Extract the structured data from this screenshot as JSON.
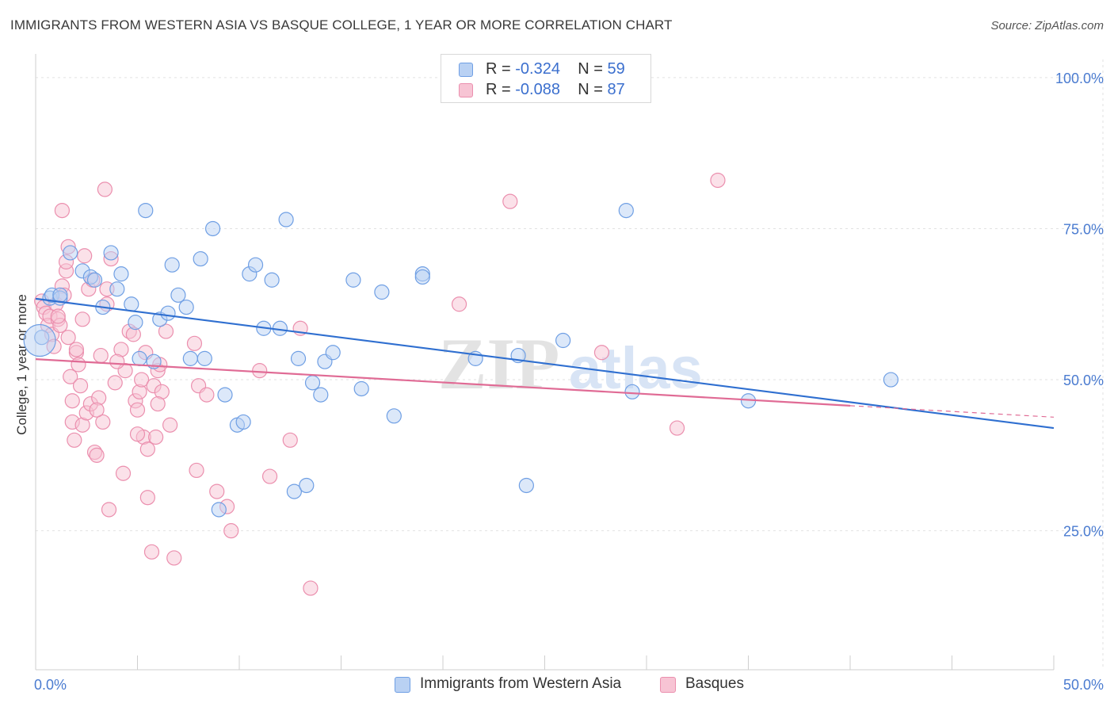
{
  "header": {
    "title": "IMMIGRANTS FROM WESTERN ASIA VS BASQUE COLLEGE, 1 YEAR OR MORE CORRELATION CHART",
    "source": "Source: ZipAtlas.com"
  },
  "watermark": {
    "part1": "ZIP",
    "part2": "atlas"
  },
  "legend": {
    "rows": [
      {
        "r_label": "R = ",
        "r_value": "-0.324",
        "n_label": "N = ",
        "n_value": "59"
      },
      {
        "r_label": "R = ",
        "r_value": "-0.088",
        "n_label": "N = ",
        "n_value": "87"
      }
    ]
  },
  "colors": {
    "blue_fill": "#b9d1f3",
    "blue_stroke": "#6f9fe4",
    "blue_line": "#2f6fd0",
    "pink_fill": "#f7c4d4",
    "pink_stroke": "#eb8fae",
    "pink_line": "#e06b95",
    "grid": "#e2e2e2",
    "axis_label": "#4a7bd0"
  },
  "chart_data": {
    "type": "scatter",
    "title": "IMMIGRANTS FROM WESTERN ASIA VS BASQUE COLLEGE, 1 YEAR OR MORE CORRELATION CHART",
    "xlabel": "",
    "ylabel": "College, 1 year or more",
    "xlim": [
      0,
      50
    ],
    "ylim": [
      2,
      103
    ],
    "x_tick_labels": [
      "0.0%",
      "50.0%"
    ],
    "y_ticks": [
      25,
      50,
      75,
      100
    ],
    "y_tick_labels": [
      "25.0%",
      "50.0%",
      "75.0%",
      "100.0%"
    ],
    "grid": true,
    "legend_position": "top-center",
    "series": [
      {
        "name": "Immigrants from Western Asia",
        "color": "#6f9fe4",
        "trend": {
          "x": [
            0,
            50
          ],
          "y": [
            63.4,
            42.0
          ],
          "style": "solid"
        },
        "points": [
          [
            0.3,
            57.0
          ],
          [
            0.7,
            63.5
          ],
          [
            0.8,
            64.0
          ],
          [
            1.2,
            63.5
          ],
          [
            1.2,
            64.0
          ],
          [
            1.7,
            71.0
          ],
          [
            2.3,
            68.0
          ],
          [
            2.7,
            67.0
          ],
          [
            2.9,
            66.5
          ],
          [
            3.3,
            62.0
          ],
          [
            3.7,
            71.0
          ],
          [
            4.0,
            65.0
          ],
          [
            4.2,
            67.5
          ],
          [
            4.7,
            62.5
          ],
          [
            4.9,
            59.5
          ],
          [
            5.1,
            53.5
          ],
          [
            5.4,
            78.0
          ],
          [
            5.8,
            53.0
          ],
          [
            6.1,
            60.0
          ],
          [
            6.5,
            61.0
          ],
          [
            6.7,
            69.0
          ],
          [
            7.0,
            64.0
          ],
          [
            7.4,
            62.0
          ],
          [
            7.6,
            53.5
          ],
          [
            8.1,
            70.0
          ],
          [
            8.3,
            53.5
          ],
          [
            8.7,
            75.0
          ],
          [
            9.0,
            28.5
          ],
          [
            9.3,
            47.5
          ],
          [
            9.9,
            42.5
          ],
          [
            10.2,
            43.0
          ],
          [
            10.5,
            67.5
          ],
          [
            10.8,
            69.0
          ],
          [
            11.2,
            58.5
          ],
          [
            11.6,
            66.5
          ],
          [
            12.0,
            58.5
          ],
          [
            12.3,
            76.5
          ],
          [
            12.7,
            31.5
          ],
          [
            12.9,
            53.5
          ],
          [
            13.3,
            32.5
          ],
          [
            13.6,
            49.5
          ],
          [
            14.0,
            47.5
          ],
          [
            14.2,
            53.0
          ],
          [
            14.6,
            54.5
          ],
          [
            15.6,
            66.5
          ],
          [
            16.0,
            48.5
          ],
          [
            17.0,
            64.5
          ],
          [
            17.6,
            44.0
          ],
          [
            19.0,
            67.5
          ],
          [
            19.0,
            67.0
          ],
          [
            21.6,
            53.5
          ],
          [
            23.7,
            54.0
          ],
          [
            24.1,
            32.5
          ],
          [
            25.9,
            56.5
          ],
          [
            29.0,
            78.0
          ],
          [
            29.3,
            48.0
          ],
          [
            35.0,
            46.5
          ],
          [
            42.0,
            50.0
          ],
          [
            0.2,
            56.5
          ]
        ],
        "sizes": [
          1,
          1,
          1,
          1,
          1,
          1,
          1,
          1,
          1,
          1,
          1,
          1,
          1,
          1,
          1,
          1,
          1,
          1,
          1,
          1,
          1,
          1,
          1,
          1,
          1,
          1,
          1,
          1,
          1,
          1,
          1,
          1,
          1,
          1,
          1,
          1,
          1,
          1,
          1,
          1,
          1,
          1,
          1,
          1,
          1,
          1,
          1,
          1,
          1,
          1,
          1,
          1,
          1,
          1,
          1,
          1,
          1,
          1,
          3
        ]
      },
      {
        "name": "Basques",
        "color": "#eb8fae",
        "trend": {
          "x": [
            0,
            40
          ],
          "y": [
            53.4,
            45.7
          ],
          "style": "solid",
          "dashed_extension": {
            "x": [
              40,
              50
            ],
            "y": [
              45.7,
              43.8
            ]
          }
        },
        "points": [
          [
            0.3,
            63.0
          ],
          [
            0.4,
            62.0
          ],
          [
            0.5,
            61.0
          ],
          [
            0.6,
            59.0
          ],
          [
            0.7,
            60.5
          ],
          [
            0.8,
            57.5
          ],
          [
            0.9,
            55.5
          ],
          [
            1.0,
            62.5
          ],
          [
            1.1,
            60.0
          ],
          [
            1.2,
            59.0
          ],
          [
            1.3,
            65.5
          ],
          [
            1.4,
            64.0
          ],
          [
            1.5,
            68.0
          ],
          [
            1.6,
            57.0
          ],
          [
            1.3,
            78.0
          ],
          [
            1.5,
            69.5
          ],
          [
            1.6,
            72.0
          ],
          [
            1.7,
            50.5
          ],
          [
            1.8,
            43.0
          ],
          [
            1.8,
            46.5
          ],
          [
            1.9,
            40.0
          ],
          [
            2.0,
            54.5
          ],
          [
            2.1,
            52.5
          ],
          [
            2.2,
            49.0
          ],
          [
            2.3,
            42.5
          ],
          [
            2.3,
            60.0
          ],
          [
            2.4,
            70.5
          ],
          [
            2.5,
            44.5
          ],
          [
            2.6,
            65.0
          ],
          [
            2.7,
            46.0
          ],
          [
            2.8,
            66.5
          ],
          [
            2.9,
            38.0
          ],
          [
            3.0,
            37.5
          ],
          [
            3.1,
            47.0
          ],
          [
            3.2,
            54.0
          ],
          [
            3.3,
            43.0
          ],
          [
            3.4,
            81.5
          ],
          [
            3.5,
            65.0
          ],
          [
            3.5,
            62.5
          ],
          [
            3.6,
            28.5
          ],
          [
            3.7,
            70.0
          ],
          [
            3.9,
            49.5
          ],
          [
            4.2,
            55.0
          ],
          [
            4.3,
            34.5
          ],
          [
            4.4,
            51.5
          ],
          [
            4.6,
            58.0
          ],
          [
            4.8,
            57.5
          ],
          [
            4.9,
            46.5
          ],
          [
            5.0,
            45.0
          ],
          [
            5.1,
            48.0
          ],
          [
            5.2,
            50.0
          ],
          [
            5.3,
            40.5
          ],
          [
            5.4,
            54.5
          ],
          [
            5.5,
            38.5
          ],
          [
            5.5,
            30.5
          ],
          [
            5.7,
            21.5
          ],
          [
            5.8,
            49.0
          ],
          [
            5.9,
            40.5
          ],
          [
            6.0,
            51.5
          ],
          [
            6.1,
            52.5
          ],
          [
            6.2,
            48.0
          ],
          [
            6.4,
            58.0
          ],
          [
            6.6,
            42.5
          ],
          [
            6.8,
            20.5
          ],
          [
            7.8,
            56.0
          ],
          [
            7.9,
            35.0
          ],
          [
            8.0,
            49.0
          ],
          [
            8.4,
            47.5
          ],
          [
            8.9,
            31.5
          ],
          [
            9.4,
            29.0
          ],
          [
            9.6,
            25.0
          ],
          [
            11.0,
            51.5
          ],
          [
            11.5,
            34.0
          ],
          [
            12.5,
            40.0
          ],
          [
            13.0,
            58.5
          ],
          [
            13.5,
            15.5
          ],
          [
            23.3,
            79.5
          ],
          [
            20.8,
            62.5
          ],
          [
            27.8,
            54.5
          ],
          [
            31.5,
            42.0
          ],
          [
            33.5,
            83.0
          ],
          [
            1.1,
            60.5
          ],
          [
            2.0,
            55.0
          ],
          [
            3.0,
            45.0
          ],
          [
            5.0,
            41.0
          ],
          [
            4.0,
            53.0
          ],
          [
            6.0,
            46.0
          ]
        ]
      }
    ]
  },
  "bottom_legend": {
    "items": [
      {
        "label": "Immigrants from Western Asia"
      },
      {
        "label": "Basques"
      }
    ]
  }
}
